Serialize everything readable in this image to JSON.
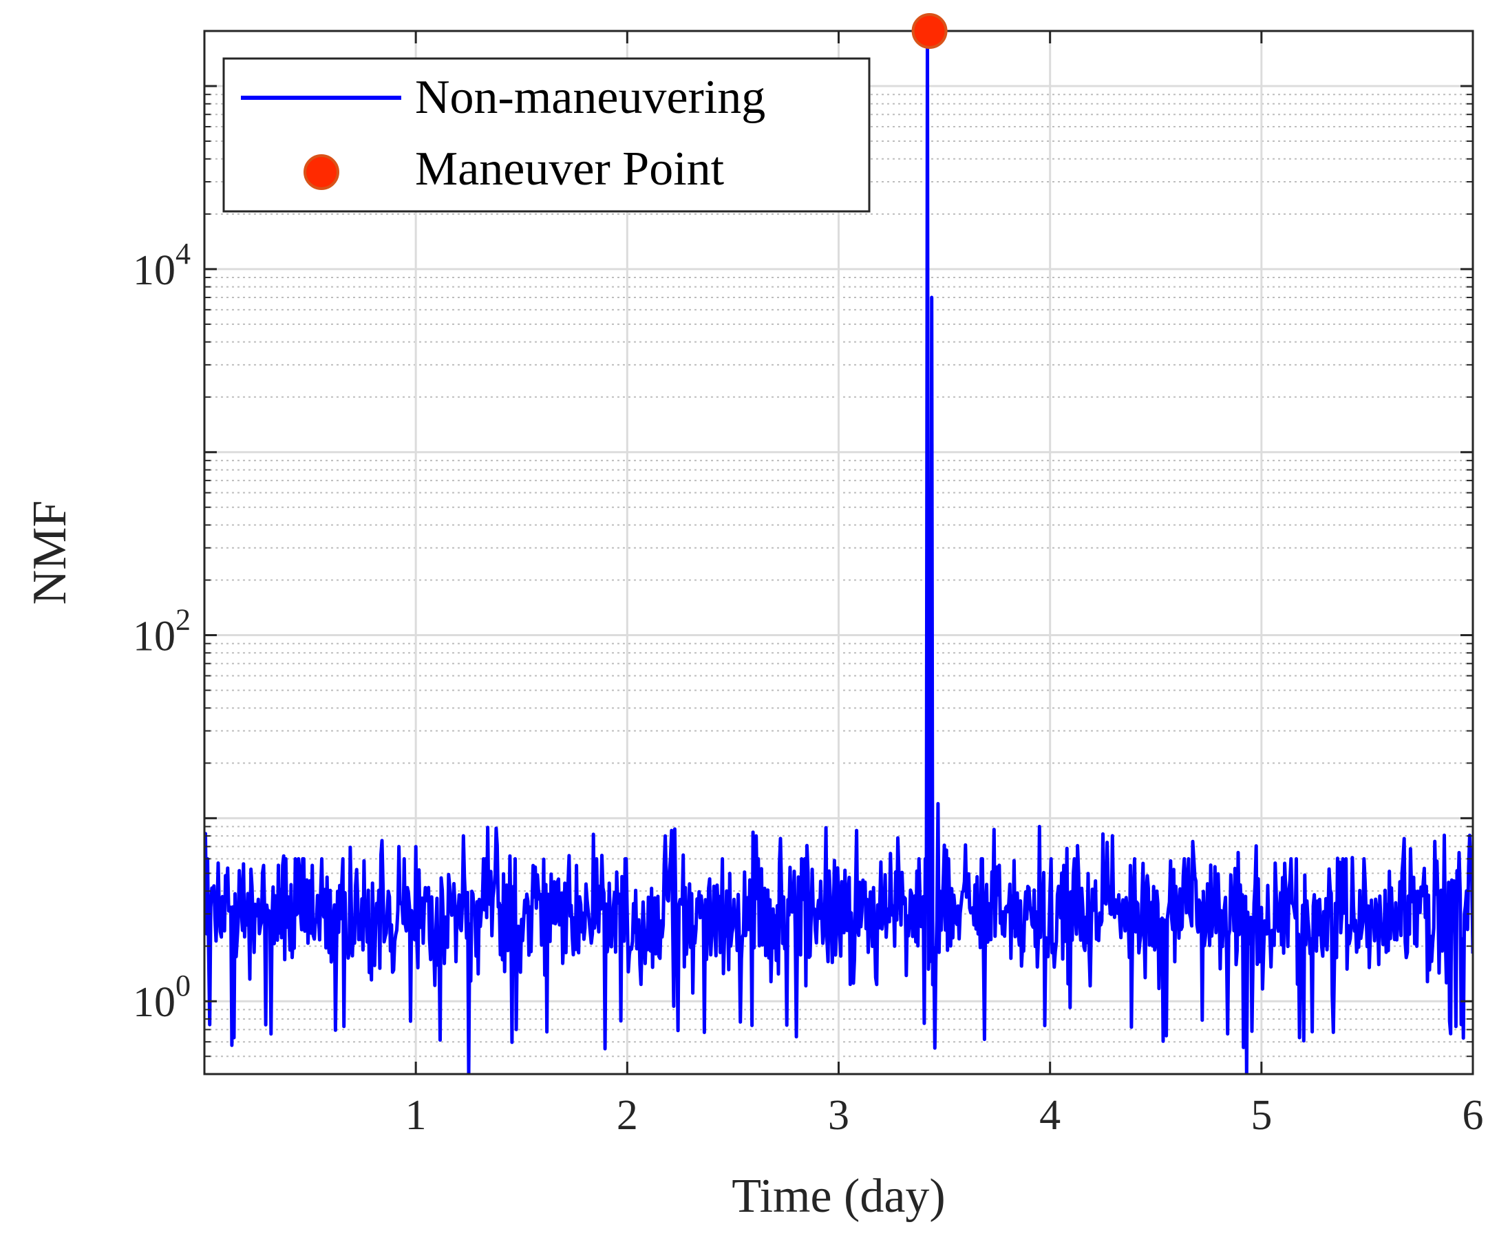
{
  "chart_data": {
    "type": "line",
    "title": "",
    "xlabel": "Time (day)",
    "ylabel": "NMF",
    "xlim": [
      0,
      6
    ],
    "ylim": [
      0.4,
      200000
    ],
    "yscale": "log",
    "xticks": [
      {
        "value": 1,
        "label": "1"
      },
      {
        "value": 2,
        "label": "2"
      },
      {
        "value": 3,
        "label": "3"
      },
      {
        "value": 4,
        "label": "4"
      },
      {
        "value": 5,
        "label": "5"
      },
      {
        "value": 6,
        "label": "6"
      }
    ],
    "yticks": [
      {
        "value": 1,
        "base": "10",
        "exp": "0"
      },
      {
        "value": 100,
        "base": "10",
        "exp": "2"
      },
      {
        "value": 10000,
        "base": "10",
        "exp": "4"
      }
    ],
    "grid": true,
    "legend_position": "top-left",
    "series": [
      {
        "name": "Non-maneuvering",
        "color": "#0000ff",
        "samples": 1200,
        "baseline_median": 3,
        "notable_points": [
          {
            "x": 0.0,
            "y": 8
          },
          {
            "x": 0.92,
            "y": 7
          },
          {
            "x": 1.25,
            "y": 0.4
          },
          {
            "x": 2.61,
            "y": 8
          },
          {
            "x": 3.42,
            "y": 200000
          },
          {
            "x": 3.44,
            "y": 7000
          },
          {
            "x": 3.47,
            "y": 12
          },
          {
            "x": 3.95,
            "y": 9
          },
          {
            "x": 4.93,
            "y": 0.4
          }
        ]
      }
    ],
    "markers": [
      {
        "name": "Maneuver Point",
        "x": 3.43,
        "y": 200000,
        "color": "#ff2a00",
        "edge_color": "#d95319"
      }
    ]
  }
}
